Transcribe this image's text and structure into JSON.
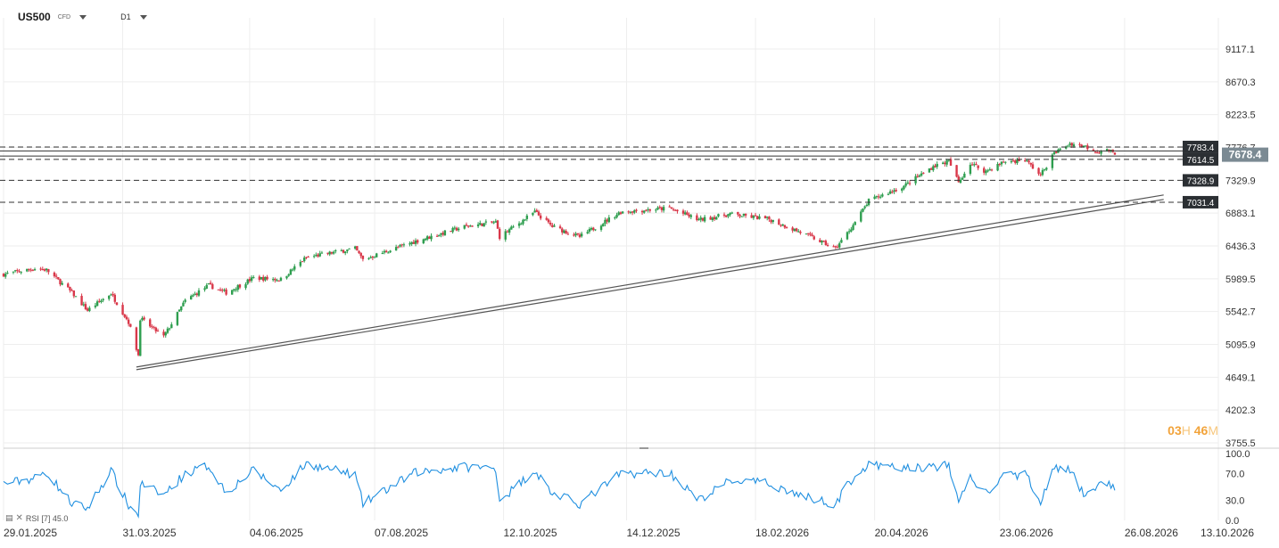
{
  "header": {
    "symbol": "US500",
    "symbol_type": "CFD",
    "timeframe": "D1"
  },
  "countdown": {
    "hours": "03",
    "hours_unit": "H",
    "minutes": "46",
    "minutes_unit": "M"
  },
  "rsi": {
    "label": "RSI [7] 45.0",
    "icon": "chart-bars-icon",
    "close_icon": "close-icon"
  },
  "chart_data": [
    {
      "type": "candlestick",
      "symbol": "US500",
      "timeframe": "D1",
      "ylim": [
        3755.5,
        9450
      ],
      "y_ticks": [
        "9117.1",
        "8670.3",
        "8223.5",
        "7776.7",
        "7329.9",
        "6883.1",
        "6436.3",
        "5989.5",
        "5542.7",
        "5095.9",
        "4649.1",
        "4202.3",
        "3755.5"
      ],
      "y_tick_values": [
        9117.1,
        8670.3,
        8223.5,
        7776.7,
        7329.9,
        6883.1,
        6436.3,
        5989.5,
        5542.7,
        5095.9,
        4649.1,
        4202.3,
        3755.5
      ],
      "x_ticks": [
        "29.01.2025",
        "31.03.2025",
        "04.06.2025",
        "07.08.2025",
        "12.10.2025",
        "14.12.2025",
        "18.02.2026",
        "20.04.2026",
        "23.06.2026",
        "26.08.2026",
        "13.10.2026"
      ],
      "current_price": "7678.4",
      "current_price_value": 7678.4,
      "colors": {
        "up": "#2e9e4f",
        "down": "#d9384a",
        "grid": "#eeeeee",
        "level_line": "#333333",
        "trend_line": "#555555",
        "price_badge": "#7b8a93",
        "level_badge": "#2b2f33"
      },
      "horizontal_levels": [
        {
          "label": "7783.4",
          "value": 7783.4,
          "style": "dashed"
        },
        {
          "label": "7614.5",
          "value": 7614.5,
          "style": "dashed"
        },
        {
          "label": "7328.9",
          "value": 7328.9,
          "style": "dashed"
        },
        {
          "label": "7031.4",
          "value": 7031.4,
          "style": "dashed"
        }
      ],
      "solid_levels": [
        7730,
        7660
      ],
      "trend_channel": {
        "start_date": "2025-04-07",
        "start_value": 4800,
        "end_date": "2026-09-15",
        "end_value": 7130
      },
      "anchors": [
        [
          "2025-01-29",
          6050
        ],
        [
          "2025-02-14",
          6130
        ],
        [
          "2025-02-20",
          6110
        ],
        [
          "2025-03-05",
          5800
        ],
        [
          "2025-03-13",
          5560
        ],
        [
          "2025-03-25",
          5790
        ],
        [
          "2025-04-03",
          5400
        ],
        [
          "2025-04-08",
          4950
        ],
        [
          "2025-04-09",
          5450
        ],
        [
          "2025-04-21",
          5200
        ],
        [
          "2025-05-02",
          5690
        ],
        [
          "2025-05-14",
          5900
        ],
        [
          "2025-05-23",
          5800
        ],
        [
          "2025-06-06",
          6000
        ],
        [
          "2025-06-20",
          5980
        ],
        [
          "2025-07-03",
          6280
        ],
        [
          "2025-07-28",
          6400
        ],
        [
          "2025-08-01",
          6250
        ],
        [
          "2025-08-28",
          6500
        ],
        [
          "2025-09-22",
          6700
        ],
        [
          "2025-10-08",
          6760
        ],
        [
          "2025-10-10",
          6560
        ],
        [
          "2025-10-28",
          6900
        ],
        [
          "2025-11-06",
          6700
        ],
        [
          "2025-11-20",
          6560
        ],
        [
          "2025-12-11",
          6900
        ],
        [
          "2026-01-05",
          6950
        ],
        [
          "2026-01-20",
          6790
        ],
        [
          "2026-02-05",
          6870
        ],
        [
          "2026-02-25",
          6800
        ],
        [
          "2026-03-15",
          6600
        ],
        [
          "2026-03-31",
          6400
        ],
        [
          "2026-04-09",
          6720
        ],
        [
          "2026-04-17",
          7050
        ],
        [
          "2026-05-05",
          7250
        ],
        [
          "2026-05-20",
          7520
        ],
        [
          "2026-05-28",
          7590
        ],
        [
          "2026-06-02",
          7300
        ],
        [
          "2026-06-08",
          7560
        ],
        [
          "2026-06-16",
          7450
        ],
        [
          "2026-06-25",
          7580
        ],
        [
          "2026-07-06",
          7610
        ],
        [
          "2026-07-14",
          7400
        ],
        [
          "2026-07-21",
          7700
        ],
        [
          "2026-07-29",
          7830
        ],
        [
          "2026-08-05",
          7800
        ],
        [
          "2026-08-12",
          7720
        ],
        [
          "2026-08-18",
          7740
        ],
        [
          "2026-08-21",
          7678
        ]
      ]
    },
    {
      "type": "line",
      "name": "RSI [7] 45.0",
      "ylim": [
        0,
        100
      ],
      "y_ticks": [
        "100.0",
        "70.0",
        "30.0",
        "0.0"
      ],
      "y_tick_values": [
        100,
        70,
        30,
        0
      ],
      "color": "#1f8fe0",
      "last_value": 45.0,
      "anchors": [
        [
          "2025-01-29",
          55
        ],
        [
          "2025-02-14",
          63
        ],
        [
          "2025-02-20",
          72
        ],
        [
          "2025-03-05",
          25
        ],
        [
          "2025-03-13",
          18
        ],
        [
          "2025-03-25",
          75
        ],
        [
          "2025-04-03",
          22
        ],
        [
          "2025-04-08",
          8
        ],
        [
          "2025-04-09",
          55
        ],
        [
          "2025-04-21",
          38
        ],
        [
          "2025-05-02",
          70
        ],
        [
          "2025-05-14",
          82
        ],
        [
          "2025-05-23",
          42
        ],
        [
          "2025-06-06",
          75
        ],
        [
          "2025-06-20",
          45
        ],
        [
          "2025-07-03",
          85
        ],
        [
          "2025-07-28",
          68
        ],
        [
          "2025-08-01",
          25
        ],
        [
          "2025-08-28",
          72
        ],
        [
          "2025-09-22",
          80
        ],
        [
          "2025-10-08",
          78
        ],
        [
          "2025-10-10",
          30
        ],
        [
          "2025-10-28",
          75
        ],
        [
          "2025-11-06",
          40
        ],
        [
          "2025-11-20",
          25
        ],
        [
          "2025-12-11",
          70
        ],
        [
          "2026-01-05",
          72
        ],
        [
          "2026-01-20",
          30
        ],
        [
          "2026-02-05",
          60
        ],
        [
          "2026-02-25",
          55
        ],
        [
          "2026-03-15",
          35
        ],
        [
          "2026-03-31",
          25
        ],
        [
          "2026-04-09",
          65
        ],
        [
          "2026-04-17",
          82
        ],
        [
          "2026-05-05",
          78
        ],
        [
          "2026-05-20",
          80
        ],
        [
          "2026-05-28",
          82
        ],
        [
          "2026-06-02",
          28
        ],
        [
          "2026-06-08",
          65
        ],
        [
          "2026-06-16",
          40
        ],
        [
          "2026-06-25",
          65
        ],
        [
          "2026-07-06",
          70
        ],
        [
          "2026-07-14",
          30
        ],
        [
          "2026-07-21",
          78
        ],
        [
          "2026-07-29",
          74
        ],
        [
          "2026-08-05",
          40
        ],
        [
          "2026-08-12",
          50
        ],
        [
          "2026-08-18",
          58
        ],
        [
          "2026-08-21",
          45
        ]
      ]
    }
  ]
}
